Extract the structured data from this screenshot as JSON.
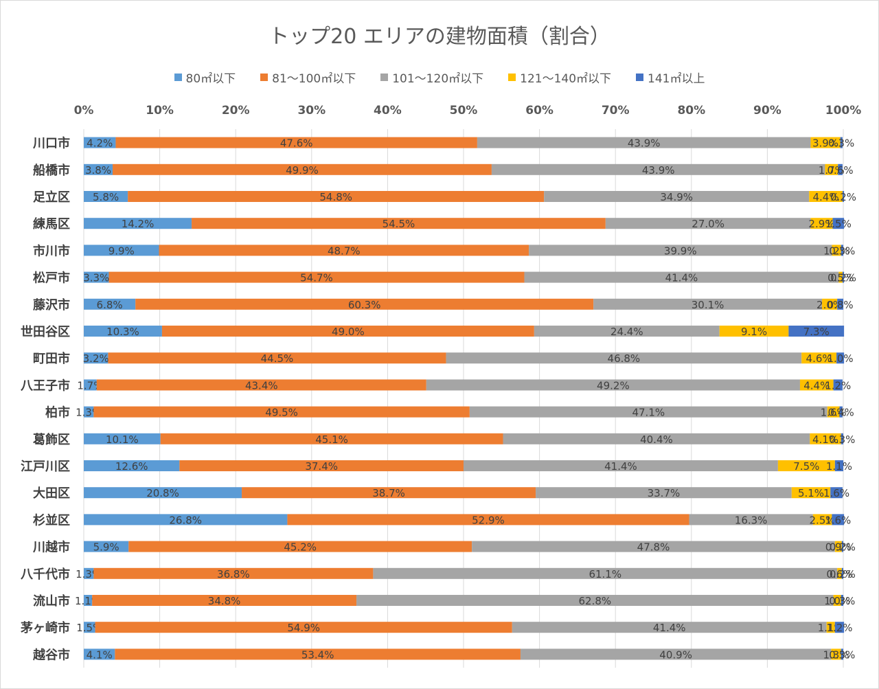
{
  "chart_data": {
    "type": "bar",
    "orientation": "horizontal",
    "stacked": "percent",
    "title": "トップ20 エリアの建物面積（割合）",
    "categories": [
      "川口市",
      "船橋市",
      "足立区",
      "練馬区",
      "市川市",
      "松戸市",
      "藤沢市",
      "世田谷区",
      "町田市",
      "八王子市",
      "柏市",
      "葛飾区",
      "江戸川区",
      "大田区",
      "杉並区",
      "川越市",
      "八千代市",
      "流山市",
      "茅ヶ崎市",
      "越谷市"
    ],
    "x_ticks": [
      "0%",
      "10%",
      "20%",
      "30%",
      "40%",
      "50%",
      "60%",
      "70%",
      "80%",
      "90%",
      "100%"
    ],
    "xlim": [
      0,
      100
    ],
    "legend_position": "top",
    "grid": true,
    "series": [
      {
        "name": "80㎡以下",
        "color": "#5B9BD5",
        "values": [
          4.2,
          3.8,
          5.8,
          14.2,
          9.9,
          3.3,
          6.8,
          10.3,
          3.2,
          1.7,
          1.3,
          10.1,
          12.6,
          20.8,
          26.8,
          5.9,
          1.3,
          1.1,
          1.5,
          4.1
        ],
        "labels": [
          "4.2%",
          "3.8%",
          "5.8%",
          "14.2%",
          "9.9%",
          "3.3%",
          "6.8%",
          "10.3%",
          "3.2%",
          "1.7%",
          "1.3%",
          "10.1%",
          "12.6%",
          "20.8%",
          "26.8%",
          "5.9%",
          "1.3%",
          "1.1%",
          "1.5%",
          "4.1%"
        ]
      },
      {
        "name": "81～100㎡以下",
        "color": "#ED7D31",
        "values": [
          47.6,
          49.9,
          54.8,
          54.5,
          48.7,
          54.7,
          60.3,
          49.0,
          44.5,
          43.4,
          49.5,
          45.1,
          37.4,
          38.7,
          52.9,
          45.2,
          36.8,
          34.8,
          54.9,
          53.4
        ],
        "labels": [
          "47.6%",
          "49.9%",
          "54.8%",
          "54.5%",
          "48.7%",
          "54.7%",
          "60.3%",
          "49.0%",
          "44.5%",
          "43.4%",
          "49.5%",
          "45.1%",
          "37.4%",
          "38.7%",
          "52.9%",
          "45.2%",
          "36.8%",
          "34.8%",
          "54.9%",
          "53.4%"
        ]
      },
      {
        "name": "101～120㎡以下",
        "color": "#A5A5A5",
        "values": [
          43.9,
          43.9,
          34.9,
          27.0,
          39.9,
          41.4,
          30.1,
          24.4,
          46.8,
          49.2,
          47.1,
          40.4,
          41.4,
          33.7,
          16.3,
          47.8,
          61.1,
          62.8,
          41.4,
          40.9
        ],
        "labels": [
          "43.9%",
          "43.9%",
          "34.9%",
          "27.0%",
          "39.9%",
          "41.4%",
          "30.1%",
          "24.4%",
          "46.8%",
          "49.2%",
          "47.1%",
          "40.4%",
          "41.4%",
          "33.7%",
          "16.3%",
          "47.8%",
          "61.1%",
          "62.8%",
          "41.4%",
          "40.9%"
        ]
      },
      {
        "name": "121～140㎡以下",
        "color": "#FFC000",
        "values": [
          3.9,
          1.7,
          4.4,
          2.9,
          1.2,
          0.5,
          2.0,
          9.1,
          4.6,
          4.4,
          1.6,
          4.1,
          7.5,
          5.1,
          2.5,
          0.9,
          0.6,
          1.0,
          1.1,
          1.3
        ],
        "labels": [
          "3.9%",
          "1.7%",
          "4.4%",
          "2.9%",
          "1.2%",
          "0.5%",
          "2.0%",
          "9.1%",
          "4.6%",
          "4.4%",
          "1.6%",
          "4.1%",
          "7.5%",
          "5.1%",
          "2.5%",
          "0.9%",
          "0.6%",
          "1.0%",
          "1.1%",
          "1.3%"
        ]
      },
      {
        "name": "141㎡以上",
        "color": "#4472C4",
        "values": [
          0.3,
          0.6,
          0.2,
          1.5,
          0.3,
          0.2,
          0.8,
          7.3,
          1.0,
          1.2,
          0.4,
          0.3,
          1.1,
          1.6,
          1.6,
          0.2,
          0.2,
          0.3,
          1.2,
          0.3
        ],
        "labels": [
          "0.3%",
          "0.6%",
          "0.2%",
          "1.5%",
          "0.3%",
          "0.2%",
          "0.8%",
          "7.3%",
          "1.0%",
          "1.2%",
          "0.4%",
          "0.3%",
          "1.1%",
          "1.6%",
          "1.6%",
          "0.2%",
          "0.2%",
          "0.3%",
          "1.2%",
          "0.3%"
        ]
      }
    ]
  }
}
